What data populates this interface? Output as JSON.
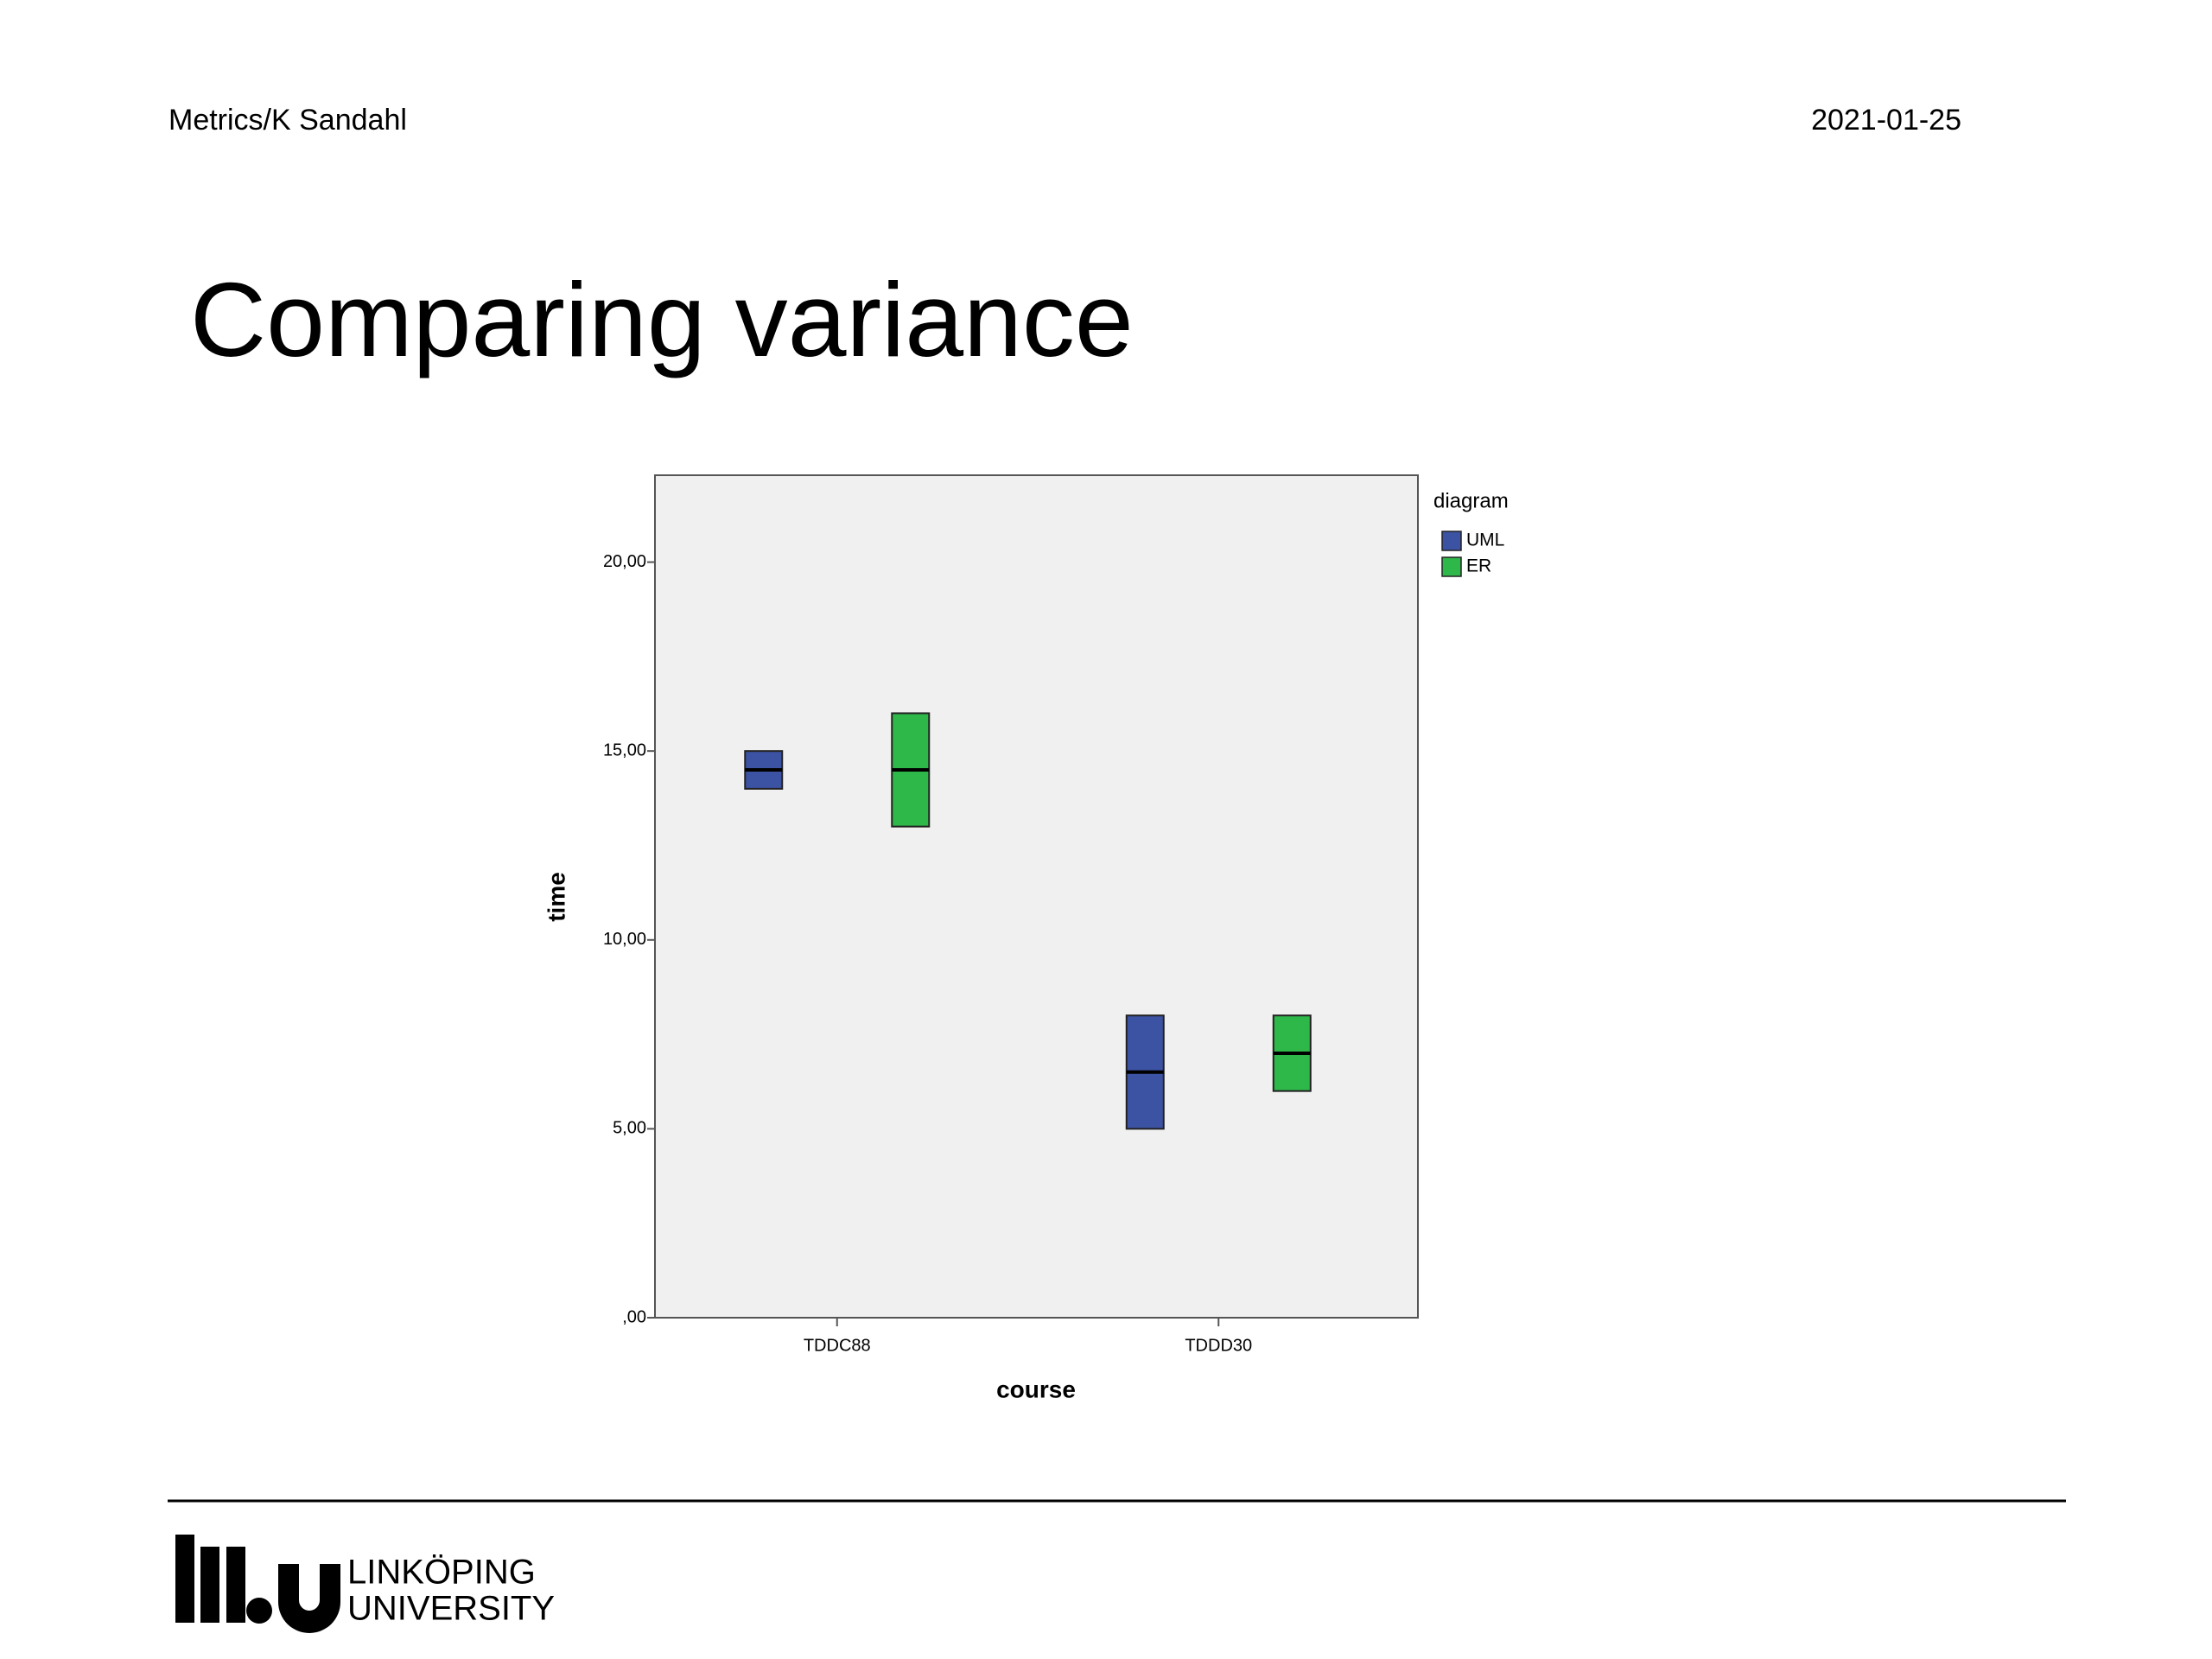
{
  "header": {
    "left": "Metrics/K Sandahl",
    "right": "2021-01-25"
  },
  "title": "Comparing variance",
  "chart_data": {
    "type": "box",
    "x_label": "course",
    "y_label": "time",
    "categories": [
      "TDDC88",
      "TDDD30"
    ],
    "legend_title": "diagram",
    "series": [
      {
        "name": "UML",
        "color": "#3c52a3",
        "q1": [
          14,
          5
        ],
        "median": [
          14.5,
          6.5
        ],
        "q3": [
          15,
          8
        ]
      },
      {
        "name": "ER",
        "color": "#2eb84a",
        "q1": [
          13,
          6
        ],
        "median": [
          14.5,
          7
        ],
        "q3": [
          16,
          8
        ]
      }
    ],
    "ylim": [
      0,
      22.3
    ],
    "yticks": [
      {
        "value": 0,
        "label": ",00"
      },
      {
        "value": 5,
        "label": "5,00"
      },
      {
        "value": 10,
        "label": "10,00"
      },
      {
        "value": 15,
        "label": "15,00"
      },
      {
        "value": 20,
        "label": "20,00"
      }
    ],
    "grid": false
  },
  "logo": {
    "line1": "LINKÖPING",
    "line2": "UNIVERSITY"
  }
}
